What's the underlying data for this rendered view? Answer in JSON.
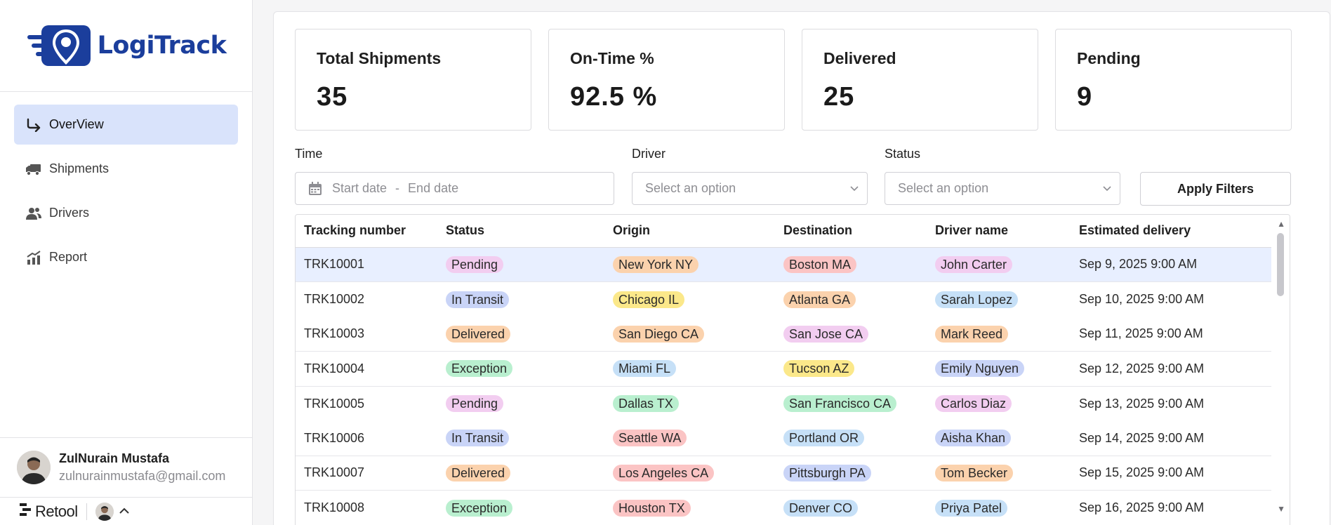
{
  "brand": {
    "name": "LogiTrack",
    "color": "#1b3e9c"
  },
  "nav": {
    "items": [
      {
        "label": "OverView",
        "icon": "arrow-turn-down-right-icon",
        "active": true
      },
      {
        "label": "Shipments",
        "icon": "truck-icon",
        "active": false
      },
      {
        "label": "Drivers",
        "icon": "users-icon",
        "active": false
      },
      {
        "label": "Report",
        "icon": "chart-up-icon",
        "active": false
      }
    ]
  },
  "user": {
    "name": "ZulNurain Mustafa",
    "email": "zulnurainmustafa@gmail.com"
  },
  "footer": {
    "brand": "Retool"
  },
  "stats": [
    {
      "label": "Total Shipments",
      "value": "35"
    },
    {
      "label": "On-Time %",
      "value": "92.5 %"
    },
    {
      "label": "Delivered",
      "value": "25"
    },
    {
      "label": "Pending",
      "value": "9"
    }
  ],
  "filters": {
    "time_label": "Time",
    "start_placeholder": "Start date",
    "date_separator": "-",
    "end_placeholder": "End date",
    "driver_label": "Driver",
    "driver_placeholder": "Select an option",
    "status_label": "Status",
    "status_placeholder": "Select an option",
    "apply_label": "Apply Filters"
  },
  "table": {
    "columns": [
      "Tracking number",
      "Status",
      "Origin",
      "Destination",
      "Driver name",
      "Estimated delivery"
    ],
    "rows": [
      {
        "tracking": "TRK10001",
        "status": "Pending",
        "origin": "New York NY",
        "destination": "Boston MA",
        "driver": "John Carter",
        "eta": "Sep 9, 2025 9:00 AM"
      },
      {
        "tracking": "TRK10002",
        "status": "In Transit",
        "origin": "Chicago IL",
        "destination": "Atlanta GA",
        "driver": "Sarah Lopez",
        "eta": "Sep 10, 2025 9:00 AM"
      },
      {
        "tracking": "TRK10003",
        "status": "Delivered",
        "origin": "San Diego CA",
        "destination": "San Jose CA",
        "driver": "Mark Reed",
        "eta": "Sep 11, 2025 9:00 AM"
      },
      {
        "tracking": "TRK10004",
        "status": "Exception",
        "origin": "Miami FL",
        "destination": "Tucson AZ",
        "driver": "Emily Nguyen",
        "eta": "Sep 12, 2025 9:00 AM"
      },
      {
        "tracking": "TRK10005",
        "status": "Pending",
        "origin": "Dallas TX",
        "destination": "San Francisco CA",
        "driver": "Carlos Diaz",
        "eta": "Sep 13, 2025 9:00 AM"
      },
      {
        "tracking": "TRK10006",
        "status": "In Transit",
        "origin": "Seattle WA",
        "destination": "Portland OR",
        "driver": "Aisha Khan",
        "eta": "Sep 14, 2025 9:00 AM"
      },
      {
        "tracking": "TRK10007",
        "status": "Delivered",
        "origin": "Los Angeles CA",
        "destination": "Pittsburgh PA",
        "driver": "Tom Becker",
        "eta": "Sep 15, 2025 9:00 AM"
      },
      {
        "tracking": "TRK10008",
        "status": "Exception",
        "origin": "Houston TX",
        "destination": "Denver CO",
        "driver": "Priya Patel",
        "eta": "Sep 16, 2025 9:00 AM"
      }
    ]
  },
  "pill_colors": {
    "status": {
      "Pending": "#f2cdf0",
      "In Transit": "#c9d4f7",
      "Delivered": "#fbd2ad",
      "Exception": "#b9efcf"
    },
    "origin": [
      "#fbd2ad",
      "#fbe88a",
      "#fbd2ad",
      "#c6e0f7",
      "#b9efcf",
      "#fbc4c4",
      "#fbc4c4",
      "#fbc4c4"
    ],
    "destination": [
      "#fbc4c4",
      "#fbd2ad",
      "#f2cdf0",
      "#fbe88a",
      "#b9efcf",
      "#c6e0f7",
      "#c9d4f7",
      "#c6e0f7"
    ],
    "driver": [
      "#f2cdf0",
      "#c6e0f7",
      "#fbd2ad",
      "#c9d4f7",
      "#f2cdf0",
      "#c9d4f7",
      "#fbd2ad",
      "#c6e0f7"
    ]
  },
  "selected_row": 0
}
